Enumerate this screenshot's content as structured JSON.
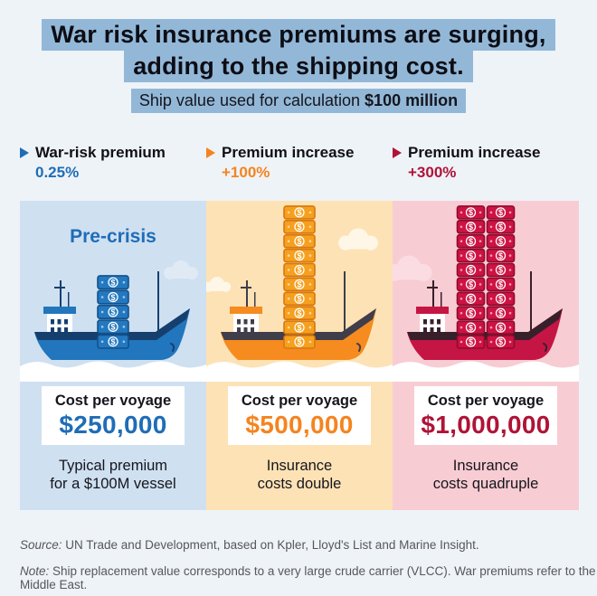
{
  "page": {
    "bg": "#eef3f8",
    "highlight": "#93b8d7"
  },
  "title": {
    "line1": "War risk insurance premiums are surging,",
    "line2": "adding to the shipping cost."
  },
  "subtitle": {
    "prefix": "Ship value used for calculation ",
    "bold": "$100 million"
  },
  "legends": [
    {
      "label": "War-risk premium",
      "value": "0.25%",
      "color": "#1f6db7"
    },
    {
      "label": "Premium increase",
      "value": "+100%",
      "color": "#f5841f"
    },
    {
      "label": "Premium increase",
      "value": "+300%",
      "color": "#b01337"
    }
  ],
  "panels": [
    {
      "scene_label": "Pre-crisis",
      "bg": "#cfe0f1",
      "accent": "#1f6db7",
      "ship_color": "#2176bd",
      "ship_dark": "#163f6e",
      "bill_fill": "#2379c0",
      "bill_stroke": "#14518a",
      "cloud": "#dfeaf5",
      "stacks": 1,
      "bills_per_stack": 5,
      "cost_label": "Cost per voyage",
      "cost_value": "$250,000",
      "caption_line1": "Typical premium",
      "caption_line2": "for a $100M vessel"
    },
    {
      "scene_label": "",
      "bg": "#fde2b5",
      "accent": "#f5841f",
      "ship_color": "#f68b1f",
      "ship_dark": "#3f3e4a",
      "bill_fill": "#f5a01e",
      "bill_stroke": "#d8770f",
      "cloud": "#fef7e8",
      "stacks": 1,
      "bills_per_stack": 10,
      "cost_label": "Cost per voyage",
      "cost_value": "$500,000",
      "caption_line1": "Insurance",
      "caption_line2": "costs double"
    },
    {
      "scene_label": "",
      "bg": "#f8ccd3",
      "accent": "#b01337",
      "ship_color": "#c51544",
      "ship_dark": "#38202b",
      "bill_fill": "#ce1243",
      "bill_stroke": "#8e0c2f",
      "cloud": "#fadce2",
      "stacks": 2,
      "bills_per_stack": 10,
      "cost_label": "Cost per voyage",
      "cost_value": "$1,000,000",
      "caption_line1": "Insurance",
      "caption_line2": "costs quadruple"
    }
  ],
  "footer": {
    "source_label": "Source:",
    "source_text": " UN Trade and Development, based on Kpler, Lloyd's List and Marine Insight.",
    "note_label": "Note:",
    "note_text": " Ship replacement value corresponds to a very large crude carrier (VLCC). War premiums refer to the Middle East."
  },
  "chart_data": {
    "type": "bar",
    "title": "War risk insurance premiums are surging, adding to the shipping cost.",
    "subtitle": "Ship value used for calculation $100 million",
    "categories": [
      "Pre-crisis (war-risk premium 0.25%)",
      "Premium increase +100%",
      "Premium increase +300%"
    ],
    "values": [
      250000,
      500000,
      1000000
    ],
    "value_labels": [
      "$250,000",
      "$500,000",
      "$1,000,000"
    ],
    "unit": "USD cost per voyage",
    "annotations": [
      "Typical premium for a $100M vessel",
      "Insurance costs double",
      "Insurance costs quadruple"
    ],
    "series_colors": [
      "#1f6db7",
      "#f5841f",
      "#b01337"
    ],
    "legend_position": "top",
    "grid": false
  }
}
